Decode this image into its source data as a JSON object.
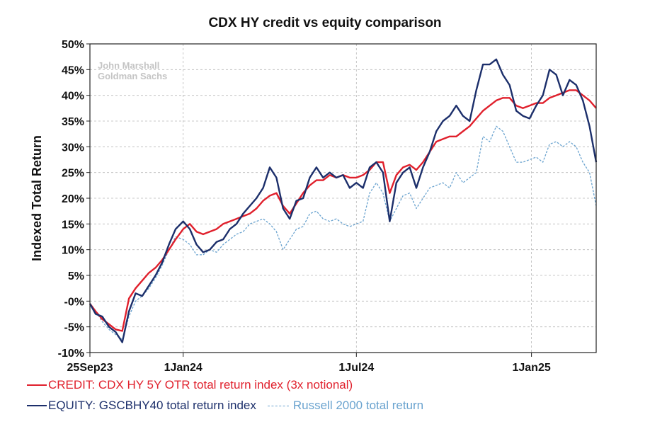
{
  "chart_data": {
    "type": "line",
    "title": "CDX HY credit vs equity comparison",
    "ylabel": "Indexed Total Return",
    "xlabel": "",
    "watermark": [
      "John Marshall",
      "Goldman Sachs"
    ],
    "ylim": [
      -10,
      50
    ],
    "y_ticks": [
      -10,
      -5,
      0,
      5,
      10,
      15,
      20,
      25,
      30,
      35,
      40,
      45,
      50
    ],
    "y_tick_labels": [
      "-10%",
      "-5%",
      "-0%",
      "5%",
      "10%",
      "15%",
      "20%",
      "25%",
      "30%",
      "35%",
      "40%",
      "45%",
      "50%"
    ],
    "x_range": [
      "2023-09-25",
      "2025-03-10"
    ],
    "x_ticks": [
      "2023-09-25",
      "2024-01-01",
      "2024-07-01",
      "2025-01-01"
    ],
    "x_tick_labels": [
      "25Sep23",
      "1Jan24",
      "1Jul24",
      "1Jan25"
    ],
    "grid": true,
    "legend_position": "bottom",
    "series": [
      {
        "name": "CREDIT: CDX HY 5Y OTR total return index (3x notional)",
        "color": "#e0202c",
        "style": "solid",
        "points": [
          [
            "2023-09-25",
            -0.5
          ],
          [
            "2023-10-01",
            -2
          ],
          [
            "2023-10-08",
            -3.5
          ],
          [
            "2023-10-15",
            -4.5
          ],
          [
            "2023-10-22",
            -5.5
          ],
          [
            "2023-10-29",
            -5.8
          ],
          [
            "2023-11-05",
            0.5
          ],
          [
            "2023-11-12",
            2.5
          ],
          [
            "2023-11-19",
            4
          ],
          [
            "2023-11-26",
            5.5
          ],
          [
            "2023-12-03",
            6.5
          ],
          [
            "2023-12-10",
            8
          ],
          [
            "2023-12-17",
            10
          ],
          [
            "2023-12-24",
            12
          ],
          [
            "2024-01-01",
            14
          ],
          [
            "2024-01-08",
            15
          ],
          [
            "2024-01-15",
            13.5
          ],
          [
            "2024-01-22",
            13
          ],
          [
            "2024-01-29",
            13.5
          ],
          [
            "2024-02-05",
            14
          ],
          [
            "2024-02-12",
            15
          ],
          [
            "2024-02-19",
            15.5
          ],
          [
            "2024-02-26",
            16
          ],
          [
            "2024-03-04",
            16.5
          ],
          [
            "2024-03-11",
            17
          ],
          [
            "2024-03-18",
            18
          ],
          [
            "2024-03-25",
            19.5
          ],
          [
            "2024-04-01",
            20.5
          ],
          [
            "2024-04-08",
            21
          ],
          [
            "2024-04-15",
            18.5
          ],
          [
            "2024-04-22",
            17
          ],
          [
            "2024-04-29",
            19
          ],
          [
            "2024-05-06",
            21
          ],
          [
            "2024-05-13",
            22.5
          ],
          [
            "2024-05-20",
            23.5
          ],
          [
            "2024-05-27",
            23.5
          ],
          [
            "2024-06-03",
            24.5
          ],
          [
            "2024-06-10",
            24
          ],
          [
            "2024-06-17",
            24.5
          ],
          [
            "2024-06-24",
            24
          ],
          [
            "2024-07-01",
            24
          ],
          [
            "2024-07-08",
            24.5
          ],
          [
            "2024-07-15",
            25.5
          ],
          [
            "2024-07-22",
            27
          ],
          [
            "2024-07-29",
            27
          ],
          [
            "2024-08-05",
            21
          ],
          [
            "2024-08-12",
            24.5
          ],
          [
            "2024-08-19",
            26
          ],
          [
            "2024-08-26",
            26.5
          ],
          [
            "2024-09-02",
            25.5
          ],
          [
            "2024-09-09",
            27
          ],
          [
            "2024-09-16",
            29
          ],
          [
            "2024-09-23",
            31
          ],
          [
            "2024-09-30",
            31.5
          ],
          [
            "2024-10-07",
            32
          ],
          [
            "2024-10-14",
            32
          ],
          [
            "2024-10-21",
            33
          ],
          [
            "2024-10-28",
            34
          ],
          [
            "2024-11-04",
            35.5
          ],
          [
            "2024-11-11",
            37
          ],
          [
            "2024-11-18",
            38
          ],
          [
            "2024-11-25",
            39
          ],
          [
            "2024-12-02",
            39.5
          ],
          [
            "2024-12-09",
            39.5
          ],
          [
            "2024-12-16",
            38
          ],
          [
            "2024-12-23",
            37.5
          ],
          [
            "2024-12-30",
            38
          ],
          [
            "2025-01-06",
            38.5
          ],
          [
            "2025-01-13",
            38.5
          ],
          [
            "2025-01-20",
            39.5
          ],
          [
            "2025-01-27",
            40
          ],
          [
            "2025-02-03",
            40.5
          ],
          [
            "2025-02-10",
            41
          ],
          [
            "2025-02-17",
            41
          ],
          [
            "2025-02-24",
            40
          ],
          [
            "2025-03-03",
            39
          ],
          [
            "2025-03-10",
            37.5
          ]
        ]
      },
      {
        "name": "EQUITY: GSCBHY40 total return index",
        "color": "#1c2f6b",
        "style": "solid",
        "points": [
          [
            "2023-09-25",
            -0.5
          ],
          [
            "2023-10-01",
            -2.5
          ],
          [
            "2023-10-08",
            -3
          ],
          [
            "2023-10-15",
            -5
          ],
          [
            "2023-10-22",
            -6
          ],
          [
            "2023-10-29",
            -8
          ],
          [
            "2023-11-05",
            -2
          ],
          [
            "2023-11-12",
            1.5
          ],
          [
            "2023-11-19",
            1
          ],
          [
            "2023-11-26",
            3
          ],
          [
            "2023-12-03",
            5
          ],
          [
            "2023-12-10",
            7.5
          ],
          [
            "2023-12-17",
            11
          ],
          [
            "2023-12-24",
            14
          ],
          [
            "2024-01-01",
            15.5
          ],
          [
            "2024-01-08",
            14
          ],
          [
            "2024-01-15",
            11
          ],
          [
            "2024-01-22",
            9.5
          ],
          [
            "2024-01-29",
            10
          ],
          [
            "2024-02-05",
            11.5
          ],
          [
            "2024-02-12",
            12
          ],
          [
            "2024-02-19",
            14
          ],
          [
            "2024-02-26",
            15
          ],
          [
            "2024-03-04",
            17
          ],
          [
            "2024-03-11",
            18.5
          ],
          [
            "2024-03-18",
            20
          ],
          [
            "2024-03-25",
            22
          ],
          [
            "2024-04-01",
            26
          ],
          [
            "2024-04-08",
            24
          ],
          [
            "2024-04-15",
            18
          ],
          [
            "2024-04-22",
            16
          ],
          [
            "2024-04-29",
            19.5
          ],
          [
            "2024-05-06",
            20
          ],
          [
            "2024-05-13",
            24
          ],
          [
            "2024-05-20",
            26
          ],
          [
            "2024-05-27",
            24
          ],
          [
            "2024-06-03",
            25
          ],
          [
            "2024-06-10",
            24
          ],
          [
            "2024-06-17",
            24.5
          ],
          [
            "2024-06-24",
            22
          ],
          [
            "2024-07-01",
            23
          ],
          [
            "2024-07-08",
            22
          ],
          [
            "2024-07-15",
            26
          ],
          [
            "2024-07-22",
            27
          ],
          [
            "2024-07-29",
            25
          ],
          [
            "2024-08-05",
            15.5
          ],
          [
            "2024-08-12",
            23
          ],
          [
            "2024-08-19",
            25
          ],
          [
            "2024-08-26",
            26
          ],
          [
            "2024-09-02",
            22
          ],
          [
            "2024-09-09",
            26
          ],
          [
            "2024-09-16",
            29
          ],
          [
            "2024-09-23",
            33
          ],
          [
            "2024-09-30",
            35
          ],
          [
            "2024-10-07",
            36
          ],
          [
            "2024-10-14",
            38
          ],
          [
            "2024-10-21",
            36
          ],
          [
            "2024-10-28",
            35
          ],
          [
            "2024-11-04",
            41
          ],
          [
            "2024-11-11",
            46
          ],
          [
            "2024-11-18",
            46
          ],
          [
            "2024-11-25",
            47
          ],
          [
            "2024-12-02",
            44
          ],
          [
            "2024-12-09",
            42
          ],
          [
            "2024-12-16",
            37
          ],
          [
            "2024-12-23",
            36
          ],
          [
            "2024-12-30",
            35.5
          ],
          [
            "2025-01-06",
            38
          ],
          [
            "2025-01-13",
            40
          ],
          [
            "2025-01-20",
            45
          ],
          [
            "2025-01-27",
            44
          ],
          [
            "2025-02-03",
            40
          ],
          [
            "2025-02-10",
            43
          ],
          [
            "2025-02-17",
            42
          ],
          [
            "2025-02-24",
            39
          ],
          [
            "2025-03-03",
            34
          ],
          [
            "2025-03-10",
            27
          ]
        ]
      },
      {
        "name": "Russell 2000 total return",
        "color": "#6aa3cf",
        "style": "dashed",
        "points": [
          [
            "2023-09-25",
            -0.5
          ],
          [
            "2023-10-01",
            -2
          ],
          [
            "2023-10-08",
            -4
          ],
          [
            "2023-10-15",
            -5.5
          ],
          [
            "2023-10-22",
            -6.5
          ],
          [
            "2023-10-29",
            -7.5
          ],
          [
            "2023-11-05",
            -3
          ],
          [
            "2023-11-12",
            0
          ],
          [
            "2023-11-19",
            1
          ],
          [
            "2023-11-26",
            2.5
          ],
          [
            "2023-12-03",
            4.5
          ],
          [
            "2023-12-10",
            7
          ],
          [
            "2023-12-17",
            10
          ],
          [
            "2023-12-24",
            12.5
          ],
          [
            "2024-01-01",
            12
          ],
          [
            "2024-01-08",
            11
          ],
          [
            "2024-01-15",
            9
          ],
          [
            "2024-01-22",
            9
          ],
          [
            "2024-01-29",
            10
          ],
          [
            "2024-02-05",
            9.5
          ],
          [
            "2024-02-12",
            11
          ],
          [
            "2024-02-19",
            12
          ],
          [
            "2024-02-26",
            13
          ],
          [
            "2024-03-04",
            13.5
          ],
          [
            "2024-03-11",
            15
          ],
          [
            "2024-03-18",
            15.5
          ],
          [
            "2024-03-25",
            16
          ],
          [
            "2024-04-01",
            15
          ],
          [
            "2024-04-08",
            13.5
          ],
          [
            "2024-04-15",
            10
          ],
          [
            "2024-04-22",
            12
          ],
          [
            "2024-04-29",
            14
          ],
          [
            "2024-05-06",
            14.5
          ],
          [
            "2024-05-13",
            17
          ],
          [
            "2024-05-20",
            17.5
          ],
          [
            "2024-05-27",
            16
          ],
          [
            "2024-06-03",
            15.5
          ],
          [
            "2024-06-10",
            16
          ],
          [
            "2024-06-17",
            15
          ],
          [
            "2024-06-24",
            14.5
          ],
          [
            "2024-07-01",
            15
          ],
          [
            "2024-07-08",
            15.5
          ],
          [
            "2024-07-15",
            21
          ],
          [
            "2024-07-22",
            23
          ],
          [
            "2024-07-29",
            21
          ],
          [
            "2024-08-05",
            15.5
          ],
          [
            "2024-08-12",
            18
          ],
          [
            "2024-08-19",
            20.5
          ],
          [
            "2024-08-26",
            21
          ],
          [
            "2024-09-02",
            18
          ],
          [
            "2024-09-09",
            20
          ],
          [
            "2024-09-16",
            22
          ],
          [
            "2024-09-23",
            22.5
          ],
          [
            "2024-09-30",
            23
          ],
          [
            "2024-10-07",
            22
          ],
          [
            "2024-10-14",
            25
          ],
          [
            "2024-10-21",
            23
          ],
          [
            "2024-10-28",
            24
          ],
          [
            "2024-11-04",
            25
          ],
          [
            "2024-11-11",
            32
          ],
          [
            "2024-11-18",
            31
          ],
          [
            "2024-11-25",
            34
          ],
          [
            "2024-12-02",
            33
          ],
          [
            "2024-12-09",
            30
          ],
          [
            "2024-12-16",
            27
          ],
          [
            "2024-12-23",
            27
          ],
          [
            "2024-12-30",
            27.5
          ],
          [
            "2025-01-06",
            28
          ],
          [
            "2025-01-13",
            27
          ],
          [
            "2025-01-20",
            30.5
          ],
          [
            "2025-01-27",
            31
          ],
          [
            "2025-02-03",
            30
          ],
          [
            "2025-02-10",
            31
          ],
          [
            "2025-02-17",
            30
          ],
          [
            "2025-02-24",
            27
          ],
          [
            "2025-03-03",
            25
          ],
          [
            "2025-03-10",
            18.5
          ]
        ]
      }
    ]
  }
}
